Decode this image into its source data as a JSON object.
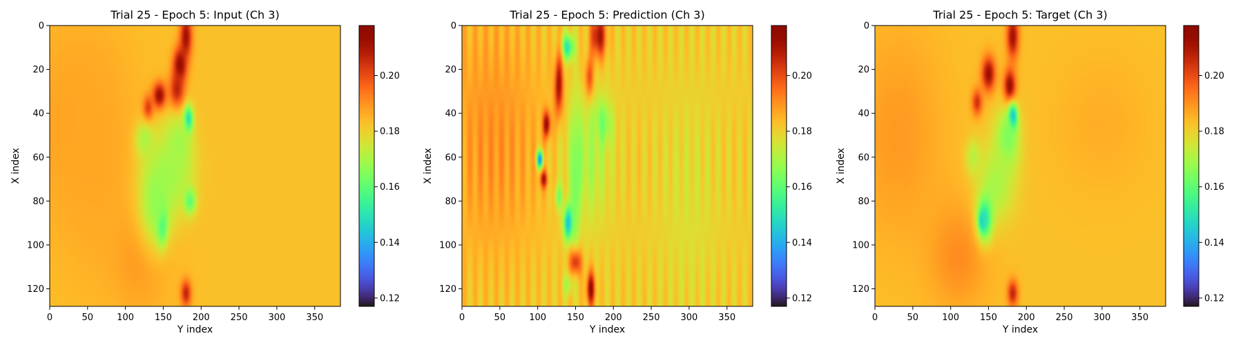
{
  "chart_data": [
    {
      "type": "heatmap",
      "title": "Trial 25 - Epoch 5: Input (Ch 3)",
      "xlabel": "Y index",
      "ylabel": "X index",
      "xlim": [
        0,
        384
      ],
      "ylim": [
        128,
        0
      ],
      "xticks": [
        0,
        50,
        100,
        150,
        200,
        250,
        300,
        350
      ],
      "yticks": [
        0,
        20,
        40,
        60,
        80,
        100,
        120
      ],
      "colormap": "turbo",
      "colorbar": {
        "range": [
          0.117,
          0.218
        ],
        "ticks": [
          0.12,
          0.14,
          0.16,
          0.18,
          0.2
        ],
        "tick_labels": [
          "0.12",
          "0.14",
          "0.16",
          "0.18",
          "0.20"
        ]
      },
      "background": 0.183,
      "features": [
        {
          "x": 30,
          "y": 45,
          "sx": 60,
          "sy": 45,
          "v": 0.188
        },
        {
          "x": 120,
          "y": 105,
          "sx": 40,
          "sy": 25,
          "v": 0.19
        },
        {
          "x": 60,
          "y": 60,
          "sx": 55,
          "sy": 60,
          "v": 0.187
        },
        {
          "x": 180,
          "y": 5,
          "sx": 8,
          "sy": 10,
          "v": 0.212
        },
        {
          "x": 172,
          "y": 18,
          "sx": 9,
          "sy": 8,
          "v": 0.215
        },
        {
          "x": 168,
          "y": 30,
          "sx": 10,
          "sy": 9,
          "v": 0.21
        },
        {
          "x": 145,
          "y": 32,
          "sx": 9,
          "sy": 6,
          "v": 0.215
        },
        {
          "x": 130,
          "y": 38,
          "sx": 7,
          "sy": 6,
          "v": 0.205
        },
        {
          "x": 180,
          "y": 122,
          "sx": 7,
          "sy": 6,
          "v": 0.207
        },
        {
          "x": 183,
          "y": 43,
          "sx": 6,
          "sy": 6,
          "v": 0.14
        },
        {
          "x": 170,
          "y": 55,
          "sx": 18,
          "sy": 15,
          "v": 0.168
        },
        {
          "x": 160,
          "y": 68,
          "sx": 28,
          "sy": 18,
          "v": 0.17
        },
        {
          "x": 185,
          "y": 80,
          "sx": 8,
          "sy": 6,
          "v": 0.16
        },
        {
          "x": 148,
          "y": 90,
          "sx": 7,
          "sy": 9,
          "v": 0.142
        },
        {
          "x": 140,
          "y": 80,
          "sx": 22,
          "sy": 22,
          "v": 0.167
        },
        {
          "x": 125,
          "y": 52,
          "sx": 12,
          "sy": 8,
          "v": 0.17
        }
      ]
    },
    {
      "type": "heatmap",
      "title": "Trial 25 - Epoch 5: Prediction (Ch 3)",
      "xlabel": "Y index",
      "ylabel": "X index",
      "xlim": [
        0,
        384
      ],
      "ylim": [
        128,
        0
      ],
      "xticks": [
        0,
        50,
        100,
        150,
        200,
        250,
        300,
        350
      ],
      "yticks": [
        0,
        20,
        40,
        60,
        80,
        100,
        120
      ],
      "colormap": "turbo",
      "colorbar": {
        "range": [
          0.117,
          0.218
        ],
        "ticks": [
          0.12,
          0.14,
          0.16,
          0.18,
          0.2
        ],
        "tick_labels": [
          "0.12",
          "0.14",
          "0.16",
          "0.18",
          "0.20"
        ]
      },
      "background": 0.181,
      "stripes": 0.004,
      "features": [
        {
          "x": 40,
          "y": 50,
          "sx": 70,
          "sy": 60,
          "v": 0.19
        },
        {
          "x": 300,
          "y": 80,
          "sx": 40,
          "sy": 50,
          "v": 0.177
        },
        {
          "x": 180,
          "y": 5,
          "sx": 10,
          "sy": 10,
          "v": 0.213
        },
        {
          "x": 140,
          "y": 10,
          "sx": 8,
          "sy": 6,
          "v": 0.15
        },
        {
          "x": 128,
          "y": 28,
          "sx": 6,
          "sy": 14,
          "v": 0.214
        },
        {
          "x": 168,
          "y": 25,
          "sx": 6,
          "sy": 10,
          "v": 0.208
        },
        {
          "x": 112,
          "y": 45,
          "sx": 5,
          "sy": 6,
          "v": 0.216
        },
        {
          "x": 108,
          "y": 70,
          "sx": 5,
          "sy": 4,
          "v": 0.21
        },
        {
          "x": 103,
          "y": 61,
          "sx": 4,
          "sy": 4,
          "v": 0.135
        },
        {
          "x": 185,
          "y": 45,
          "sx": 12,
          "sy": 10,
          "v": 0.158
        },
        {
          "x": 165,
          "y": 60,
          "sx": 30,
          "sy": 30,
          "v": 0.17
        },
        {
          "x": 150,
          "y": 70,
          "sx": 5,
          "sy": 30,
          "v": 0.16
        },
        {
          "x": 140,
          "y": 90,
          "sx": 6,
          "sy": 8,
          "v": 0.143
        },
        {
          "x": 128,
          "y": 78,
          "sx": 5,
          "sy": 6,
          "v": 0.165
        },
        {
          "x": 170,
          "y": 120,
          "sx": 6,
          "sy": 8,
          "v": 0.212
        },
        {
          "x": 150,
          "y": 108,
          "sx": 8,
          "sy": 6,
          "v": 0.205
        },
        {
          "x": 140,
          "y": 118,
          "sx": 6,
          "sy": 5,
          "v": 0.17
        }
      ]
    },
    {
      "type": "heatmap",
      "title": "Trial 25 - Epoch 5: Target (Ch 3)",
      "xlabel": "Y index",
      "ylabel": "X index",
      "xlim": [
        0,
        384
      ],
      "ylim": [
        128,
        0
      ],
      "xticks": [
        0,
        50,
        100,
        150,
        200,
        250,
        300,
        350
      ],
      "yticks": [
        0,
        20,
        40,
        60,
        80,
        100,
        120
      ],
      "colormap": "turbo",
      "colorbar": {
        "range": [
          0.117,
          0.218
        ],
        "ticks": [
          0.12,
          0.14,
          0.16,
          0.18,
          0.2
        ],
        "tick_labels": [
          "0.12",
          "0.14",
          "0.16",
          "0.18",
          "0.20"
        ]
      },
      "background": 0.183,
      "features": [
        {
          "x": 30,
          "y": 50,
          "sx": 60,
          "sy": 50,
          "v": 0.189
        },
        {
          "x": 110,
          "y": 105,
          "sx": 40,
          "sy": 25,
          "v": 0.191
        },
        {
          "x": 300,
          "y": 45,
          "sx": 60,
          "sy": 30,
          "v": 0.186
        },
        {
          "x": 182,
          "y": 5,
          "sx": 8,
          "sy": 10,
          "v": 0.212
        },
        {
          "x": 178,
          "y": 28,
          "sx": 8,
          "sy": 8,
          "v": 0.216
        },
        {
          "x": 150,
          "y": 22,
          "sx": 9,
          "sy": 8,
          "v": 0.213
        },
        {
          "x": 135,
          "y": 35,
          "sx": 7,
          "sy": 6,
          "v": 0.205
        },
        {
          "x": 182,
          "y": 122,
          "sx": 7,
          "sy": 6,
          "v": 0.207
        },
        {
          "x": 182,
          "y": 42,
          "sx": 6,
          "sy": 6,
          "v": 0.127
        },
        {
          "x": 175,
          "y": 52,
          "sx": 16,
          "sy": 14,
          "v": 0.163
        },
        {
          "x": 160,
          "y": 72,
          "sx": 25,
          "sy": 18,
          "v": 0.17
        },
        {
          "x": 142,
          "y": 89,
          "sx": 4,
          "sy": 4,
          "v": 0.125
        },
        {
          "x": 145,
          "y": 88,
          "sx": 10,
          "sy": 10,
          "v": 0.15
        },
        {
          "x": 130,
          "y": 60,
          "sx": 10,
          "sy": 8,
          "v": 0.172
        }
      ]
    }
  ]
}
